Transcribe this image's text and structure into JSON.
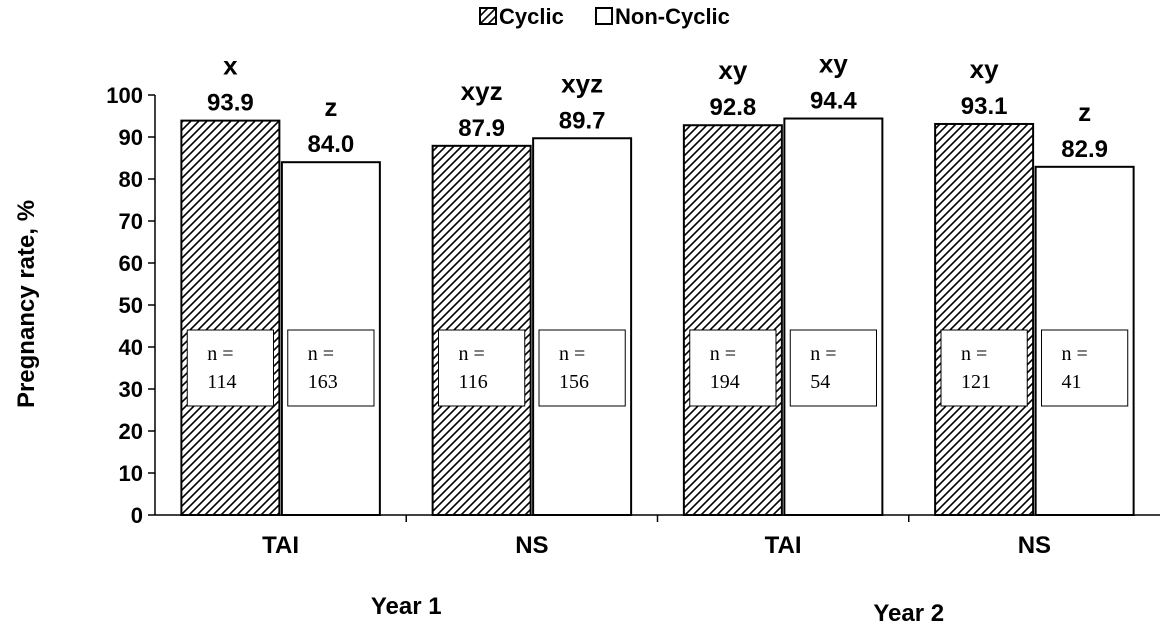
{
  "chart_data": {
    "type": "bar",
    "title": "",
    "xlabel": "",
    "ylabel": "Pregnancy rate, %",
    "ylim": [
      0,
      100
    ],
    "yticks": [
      0,
      10,
      20,
      30,
      40,
      50,
      60,
      70,
      80,
      90,
      100
    ],
    "grid": false,
    "legend_position": "top",
    "groups": [
      {
        "label": "Year 1",
        "categories": [
          "TAI",
          "NS"
        ]
      },
      {
        "label": "Year 2",
        "categories": [
          "TAI",
          "NS"
        ]
      }
    ],
    "categories": [
      "TAI",
      "NS",
      "TAI",
      "NS"
    ],
    "series": [
      {
        "name": "Cyclic",
        "pattern": "hatched",
        "values": [
          93.9,
          87.9,
          92.8,
          93.1
        ],
        "value_labels": [
          "93.9",
          "87.9",
          "92.8",
          "93.1"
        ],
        "letters": [
          "x",
          "xyz",
          "xy",
          "xy"
        ],
        "n_prefix": [
          "n =",
          "n =",
          "n =",
          "n ="
        ],
        "n_values": [
          "114",
          "116",
          "194",
          "121"
        ]
      },
      {
        "name": "Non-Cyclic",
        "pattern": "open",
        "values": [
          84.0,
          89.7,
          94.4,
          82.9
        ],
        "value_labels": [
          "84.0",
          "89.7",
          "94.4",
          "82.9"
        ],
        "letters": [
          "z",
          "xyz",
          "xy",
          "z"
        ],
        "n_prefix": [
          "n =",
          "n =",
          "n =",
          "n ="
        ],
        "n_values": [
          "163",
          "156",
          "54",
          "41"
        ]
      }
    ]
  },
  "colors": {
    "ink": "#000000",
    "background": "#ffffff"
  }
}
